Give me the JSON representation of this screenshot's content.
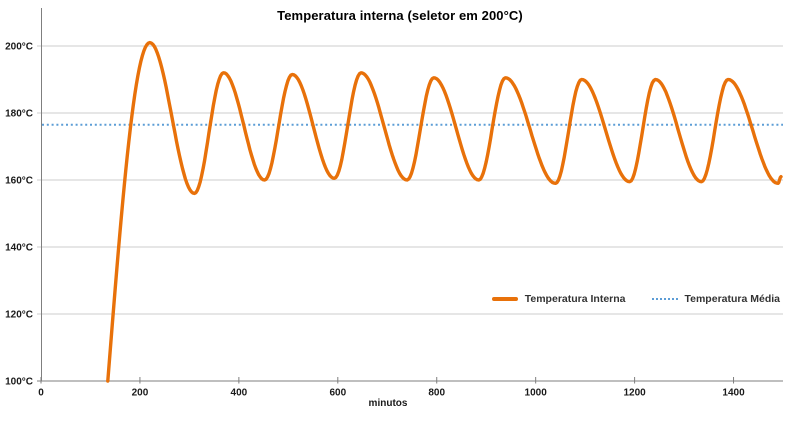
{
  "chart_data": {
    "type": "line",
    "title": "Temperatura interna (seletor em 200°C)",
    "xlabel": "minutos",
    "ylabel": "",
    "xlim": [
      0,
      1500
    ],
    "ylim": [
      100,
      200
    ],
    "grid": "horizontal",
    "legend_position": "inside-right",
    "x_ticks": [
      {
        "value": 0,
        "label": "0"
      },
      {
        "value": 200,
        "label": "200"
      },
      {
        "value": 400,
        "label": "400"
      },
      {
        "value": 600,
        "label": "600"
      },
      {
        "value": 800,
        "label": "800"
      },
      {
        "value": 1000,
        "label": "1000"
      },
      {
        "value": 1200,
        "label": "1200"
      },
      {
        "value": 1400,
        "label": "1400"
      }
    ],
    "y_ticks": [
      {
        "value": 100,
        "label": "100°C"
      },
      {
        "value": 120,
        "label": "120°C"
      },
      {
        "value": 140,
        "label": "140°C"
      },
      {
        "value": 160,
        "label": "160°C"
      },
      {
        "value": 180,
        "label": "180°C"
      },
      {
        "value": 200,
        "label": "200°C"
      }
    ],
    "series": [
      {
        "name": "Temperatura Interna",
        "color": "#E8710A",
        "style": "solid",
        "key_points": [
          {
            "t": 135,
            "temp": 100
          },
          {
            "t": 220,
            "temp": 201
          },
          {
            "t": 310,
            "temp": 156
          },
          {
            "t": 369,
            "temp": 192
          },
          {
            "t": 452,
            "temp": 160
          },
          {
            "t": 508,
            "temp": 191.5
          },
          {
            "t": 593,
            "temp": 160.5
          },
          {
            "t": 647,
            "temp": 192
          },
          {
            "t": 740,
            "temp": 160
          },
          {
            "t": 794,
            "temp": 190.5
          },
          {
            "t": 885,
            "temp": 160
          },
          {
            "t": 939,
            "temp": 190.5
          },
          {
            "t": 1040,
            "temp": 159
          },
          {
            "t": 1093,
            "temp": 190
          },
          {
            "t": 1190,
            "temp": 159.5
          },
          {
            "t": 1242,
            "temp": 190
          },
          {
            "t": 1335,
            "temp": 159.5
          },
          {
            "t": 1389,
            "temp": 190
          },
          {
            "t": 1490,
            "temp": 159
          },
          {
            "t": 1496,
            "temp": 161
          }
        ]
      },
      {
        "name": "Temperatura Média",
        "color": "#5C9DD6",
        "style": "dotted",
        "value": 176.5
      }
    ]
  }
}
